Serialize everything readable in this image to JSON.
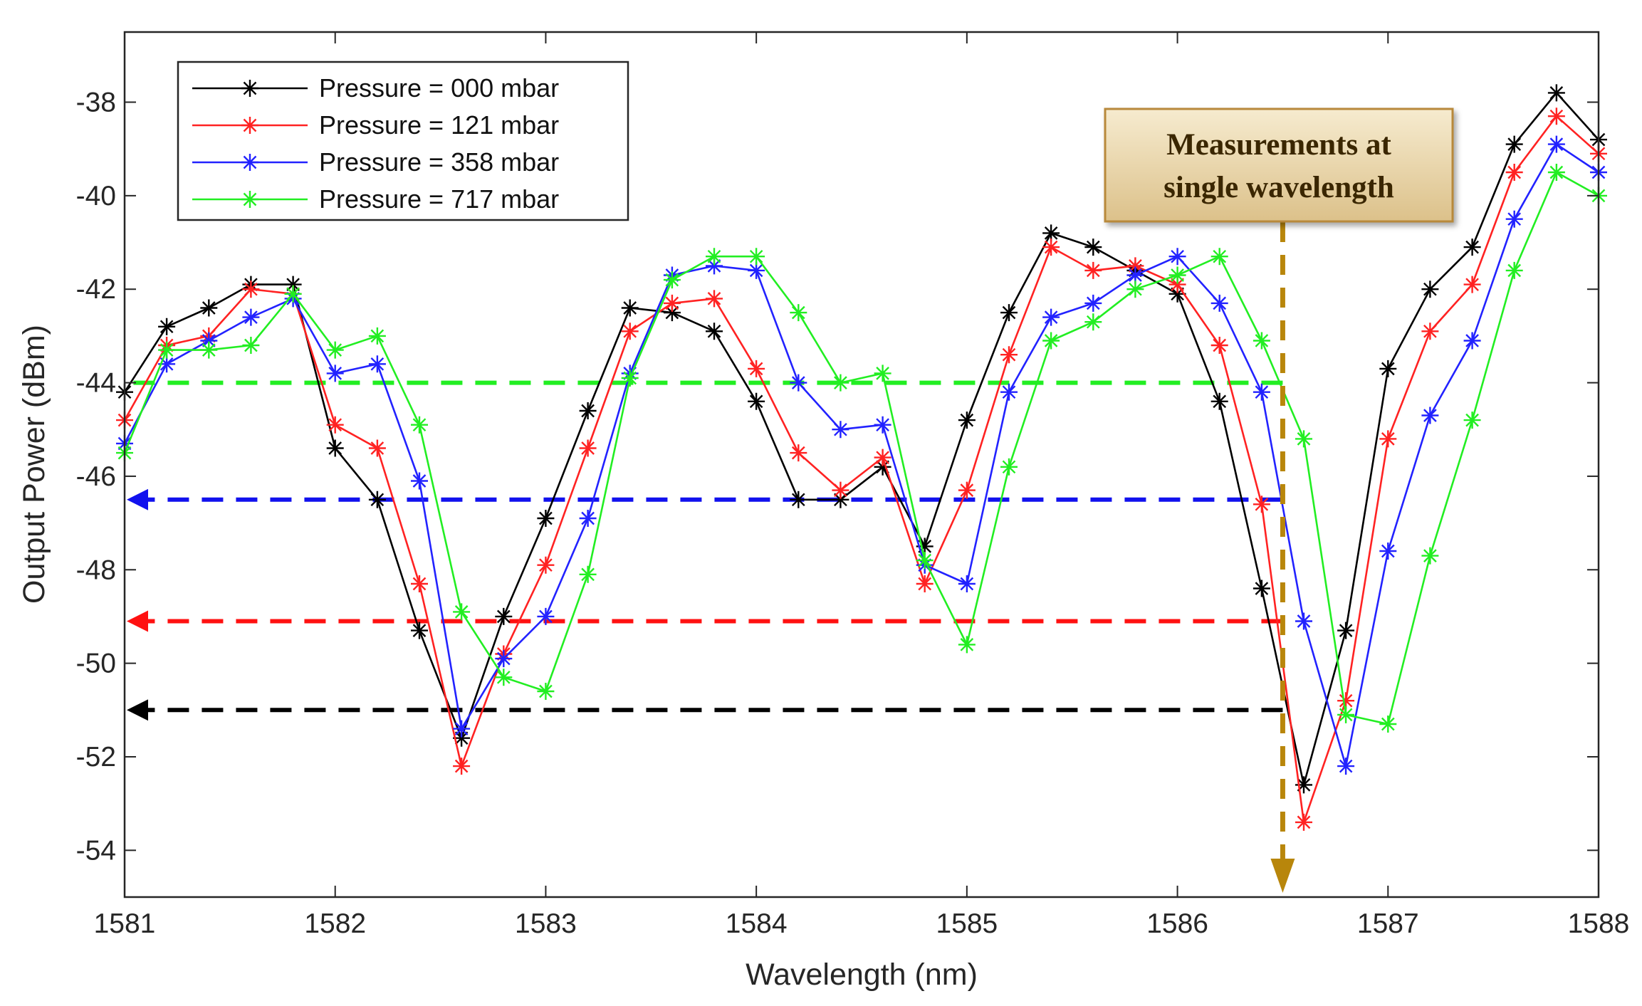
{
  "chart_data": {
    "type": "line",
    "title": "",
    "xlabel": "Wavelength (nm)",
    "ylabel": "Output Power (dBm)",
    "xlim": [
      1581,
      1588
    ],
    "ylim": [
      -55,
      -36.5
    ],
    "xticks": [
      1581,
      1582,
      1583,
      1584,
      1585,
      1586,
      1587,
      1588
    ],
    "yticks": [
      -54,
      -52,
      -50,
      -48,
      -46,
      -44,
      -42,
      -40,
      -38
    ],
    "x": [
      1581.0,
      1581.2,
      1581.4,
      1581.6,
      1581.8,
      1582.0,
      1582.2,
      1582.4,
      1582.6,
      1582.8,
      1583.0,
      1583.2,
      1583.4,
      1583.6,
      1583.8,
      1584.0,
      1584.2,
      1584.4,
      1584.6,
      1584.8,
      1585.0,
      1585.2,
      1585.4,
      1585.6,
      1585.8,
      1586.0,
      1586.2,
      1586.4,
      1586.6,
      1586.8,
      1587.0,
      1587.2,
      1587.4,
      1587.6,
      1587.8,
      1588.0
    ],
    "series": [
      {
        "name": "Pressure = 000 mbar",
        "color": "#000000",
        "values": [
          -44.2,
          -42.8,
          -42.4,
          -41.9,
          -41.9,
          -45.4,
          -46.5,
          -49.3,
          -51.6,
          -49.0,
          -46.9,
          -44.6,
          -42.4,
          -42.5,
          -42.9,
          -44.4,
          -46.5,
          -46.5,
          -45.8,
          -47.5,
          -44.8,
          -42.5,
          -40.8,
          -41.1,
          -41.6,
          -42.1,
          -44.4,
          -48.4,
          -52.6,
          -49.3,
          -43.7,
          -42.0,
          -41.1,
          -38.9,
          -37.8,
          -38.8
        ]
      },
      {
        "name": "Pressure = 121 mbar",
        "color": "#ff2222",
        "values": [
          -44.8,
          -43.2,
          -43.0,
          -42.0,
          -42.1,
          -44.9,
          -45.4,
          -48.3,
          -52.2,
          -49.8,
          -47.9,
          -45.4,
          -42.9,
          -42.3,
          -42.2,
          -43.7,
          -45.5,
          -46.3,
          -45.6,
          -48.3,
          -46.3,
          -43.4,
          -41.1,
          -41.6,
          -41.5,
          -41.9,
          -43.2,
          -46.6,
          -53.4,
          -50.8,
          -45.2,
          -42.9,
          -41.9,
          -39.5,
          -38.3,
          -39.1
        ]
      },
      {
        "name": "Pressure = 358 mbar",
        "color": "#2222ff",
        "values": [
          -45.3,
          -43.6,
          -43.1,
          -42.6,
          -42.2,
          -43.8,
          -43.6,
          -46.1,
          -51.4,
          -49.9,
          -49.0,
          -46.9,
          -43.8,
          -41.7,
          -41.5,
          -41.6,
          -44.0,
          -45.0,
          -44.9,
          -47.9,
          -48.3,
          -44.2,
          -42.6,
          -42.3,
          -41.7,
          -41.3,
          -42.3,
          -44.2,
          -49.1,
          -52.2,
          -47.6,
          -44.7,
          -43.1,
          -40.5,
          -38.9,
          -39.5
        ]
      },
      {
        "name": "Pressure = 717 mbar",
        "color": "#22ee22",
        "values": [
          -45.5,
          -43.3,
          -43.3,
          -43.2,
          -42.1,
          -43.3,
          -43.0,
          -44.9,
          -48.9,
          -50.3,
          -50.6,
          -48.1,
          -43.9,
          -41.8,
          -41.3,
          -41.3,
          -42.5,
          -44.0,
          -43.8,
          -47.8,
          -49.6,
          -45.8,
          -43.1,
          -42.7,
          -42.0,
          -41.7,
          -41.3,
          -43.1,
          -45.2,
          -51.1,
          -51.3,
          -47.7,
          -44.8,
          -41.6,
          -39.5,
          -40.0
        ]
      }
    ],
    "reference_lines": [
      {
        "series": "Pressure = 717 mbar",
        "color": "#22ee22",
        "y": -44.0,
        "x_end": 1586.5,
        "arrow": false
      },
      {
        "series": "Pressure = 358 mbar",
        "color": "#1111ee",
        "y": -46.5,
        "x_end": 1586.5,
        "arrow": true
      },
      {
        "series": "Pressure = 121 mbar",
        "color": "#ff1111",
        "y": -49.1,
        "x_end": 1586.5,
        "arrow": true
      },
      {
        "series": "Pressure = 000 mbar",
        "color": "#000000",
        "y": -51.0,
        "x_end": 1586.5,
        "arrow": true
      }
    ],
    "marker_line": {
      "x": 1586.5,
      "color": "#b8860b"
    },
    "annotation": {
      "lines": [
        "Measurements at",
        "single wavelength"
      ],
      "x": 1586.5
    },
    "legend": {
      "position": "top-left"
    },
    "grid": false
  }
}
